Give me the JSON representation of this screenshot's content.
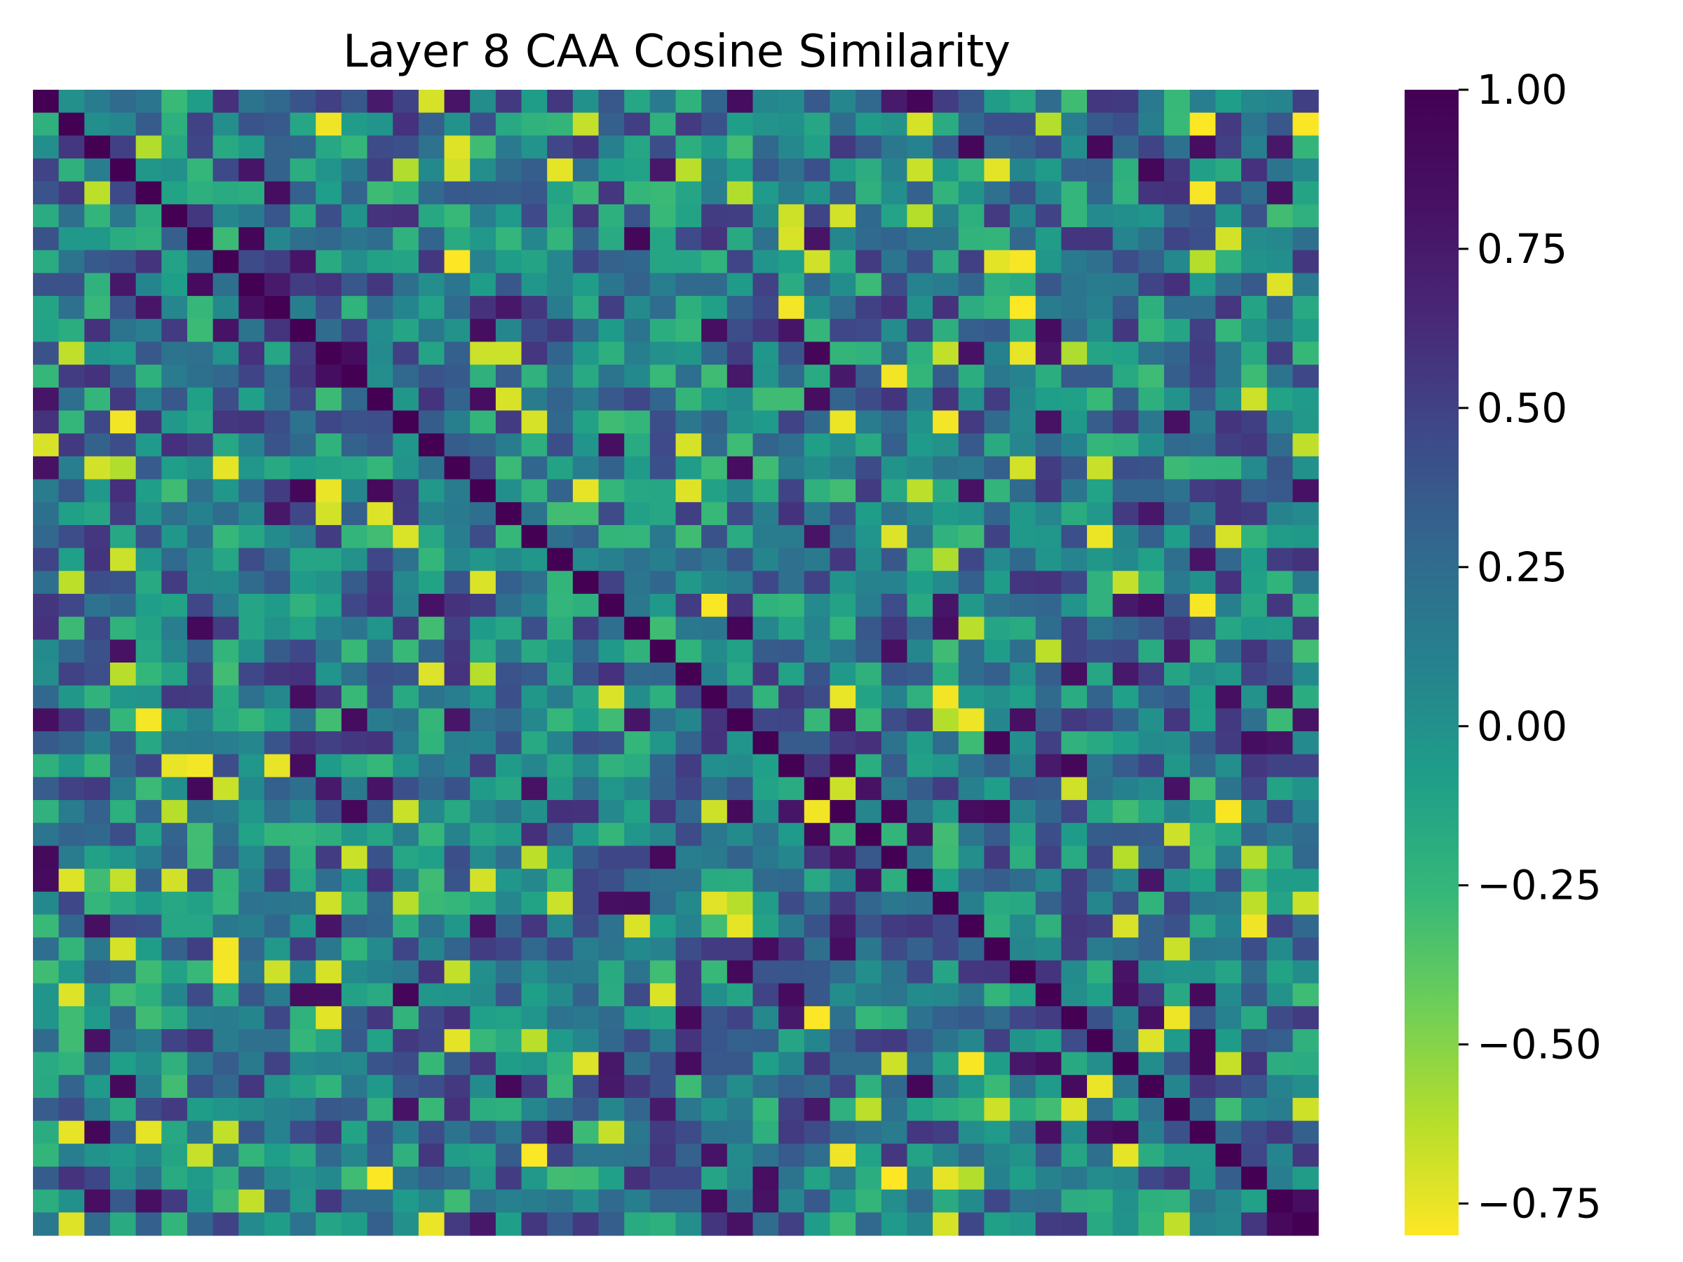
{
  "chart_data": {
    "type": "heatmap",
    "title": "Layer 8 CAA Cosine Similarity",
    "xlabel": "",
    "ylabel": "",
    "n_rows": 50,
    "n_cols": 50,
    "diagonal_value": 1.0,
    "colormap": "viridis (reversed: high = dark purple, low = yellow)",
    "colorbar": {
      "min": -0.8,
      "max": 1.0,
      "ticks": [
        1.0,
        0.75,
        0.5,
        0.25,
        0.0,
        -0.25,
        -0.5,
        -0.75
      ],
      "tick_labels": [
        "1.00",
        "0.75",
        "0.50",
        "0.25",
        "0.00",
        "−0.25",
        "−0.50",
        "−0.75"
      ]
    },
    "grid": false,
    "legend": "colorbar-right",
    "off_diagonal_note": "Off-diagonal cells are mostly in the range -0.3 to 0.6, with scattered strong negatives near -0.8 and strong positives near 0.95."
  }
}
